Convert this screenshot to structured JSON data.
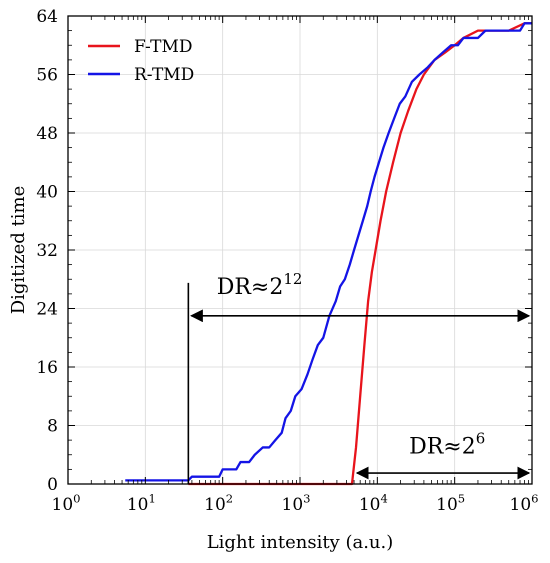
{
  "chart_data": {
    "type": "line",
    "xlabel": "Light intensity (a.u.)",
    "ylabel": "Digitized time",
    "xscale": "log",
    "xlim": [
      1,
      1000000
    ],
    "ylim": [
      0,
      64
    ],
    "grid": true,
    "legend_position": "top-left",
    "x_tick_values": [
      1,
      10,
      100,
      1000,
      10000,
      100000,
      1000000
    ],
    "x_tick_labels": [
      {
        "base": "10",
        "exp": "0"
      },
      {
        "base": "10",
        "exp": "1"
      },
      {
        "base": "10",
        "exp": "2"
      },
      {
        "base": "10",
        "exp": "3"
      },
      {
        "base": "10",
        "exp": "4"
      },
      {
        "base": "10",
        "exp": "5"
      },
      {
        "base": "10",
        "exp": "6"
      }
    ],
    "y_ticks": [
      0,
      8,
      16,
      24,
      32,
      40,
      48,
      56,
      64
    ],
    "series": [
      {
        "name": "F-TMD",
        "color": "#e8141c",
        "points": [
          [
            36,
            0
          ],
          [
            3000,
            0
          ],
          [
            4700,
            0
          ],
          [
            5300,
            5
          ],
          [
            6000,
            12
          ],
          [
            6800,
            19
          ],
          [
            7600,
            25
          ],
          [
            8500,
            29
          ],
          [
            9500,
            32
          ],
          [
            11000,
            36
          ],
          [
            13000,
            40
          ],
          [
            16000,
            44
          ],
          [
            20000,
            48
          ],
          [
            25000,
            51
          ],
          [
            32000,
            54
          ],
          [
            40000,
            56
          ],
          [
            55000,
            58
          ],
          [
            75000,
            59
          ],
          [
            100000,
            60
          ],
          [
            130000,
            61
          ],
          [
            200000,
            62
          ],
          [
            500000,
            62
          ],
          [
            800000,
            63
          ],
          [
            1000000,
            63
          ]
        ]
      },
      {
        "name": "R-TMD",
        "color": "#1414e6",
        "points": [
          [
            5.5,
            0.5
          ],
          [
            36,
            0.5
          ],
          [
            40,
            1
          ],
          [
            90,
            1
          ],
          [
            100,
            2
          ],
          [
            150,
            2
          ],
          [
            170,
            3
          ],
          [
            220,
            3
          ],
          [
            260,
            4
          ],
          [
            330,
            5
          ],
          [
            400,
            5
          ],
          [
            480,
            6
          ],
          [
            580,
            7
          ],
          [
            650,
            9
          ],
          [
            760,
            10
          ],
          [
            870,
            12
          ],
          [
            1050,
            13
          ],
          [
            1250,
            15
          ],
          [
            1450,
            17
          ],
          [
            1700,
            19
          ],
          [
            2000,
            20
          ],
          [
            2400,
            23
          ],
          [
            2900,
            25
          ],
          [
            3300,
            27
          ],
          [
            3800,
            28
          ],
          [
            4400,
            30
          ],
          [
            5000,
            32
          ],
          [
            5700,
            34
          ],
          [
            6500,
            36
          ],
          [
            7400,
            38
          ],
          [
            8200,
            40
          ],
          [
            9200,
            42
          ],
          [
            10500,
            44
          ],
          [
            12000,
            46
          ],
          [
            14000,
            48
          ],
          [
            16500,
            50
          ],
          [
            19500,
            52
          ],
          [
            23000,
            53
          ],
          [
            28000,
            55
          ],
          [
            35000,
            56
          ],
          [
            45000,
            57
          ],
          [
            55000,
            58
          ],
          [
            70000,
            59
          ],
          [
            90000,
            60
          ],
          [
            110000,
            60
          ],
          [
            130000,
            61
          ],
          [
            200000,
            61
          ],
          [
            250000,
            62
          ],
          [
            700000,
            62
          ],
          [
            800000,
            63
          ],
          [
            1000000,
            63
          ]
        ]
      }
    ],
    "annotations": [
      {
        "base": "DR≈2",
        "exp": "12",
        "x_from": 36,
        "x_to": 1000000,
        "y": 23,
        "text_x": 300,
        "text_y": 26
      },
      {
        "base": "DR≈2",
        "exp": "6",
        "x_from": 5000,
        "x_to": 1000000,
        "y": 1.5,
        "text_x": 80000,
        "text_y": 4.2
      }
    ],
    "vertical_markers": [
      {
        "x": 36,
        "y_from": 0,
        "y_to": 27.5
      }
    ]
  }
}
